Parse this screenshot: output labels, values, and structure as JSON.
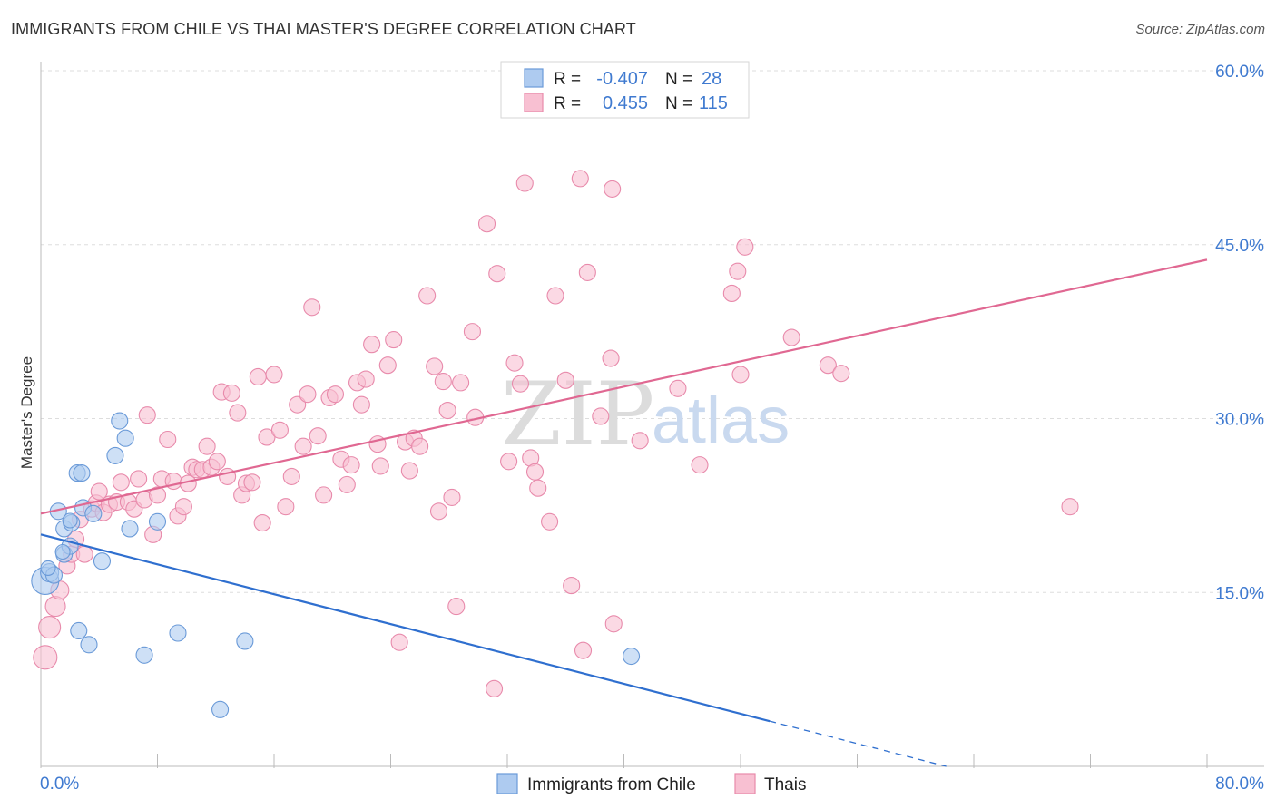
{
  "header": {
    "title": "IMMIGRANTS FROM CHILE VS THAI MASTER'S DEGREE CORRELATION CHART",
    "source": "Source: ZipAtlas.com"
  },
  "legend": {
    "r_label": "R =",
    "n_label": "N =",
    "rows": [
      {
        "r": "-0.407",
        "n": "28"
      },
      {
        "r": "0.455",
        "n": "115"
      }
    ]
  },
  "watermark": {
    "part1": "ZIP",
    "part2": "atlas"
  },
  "colors": {
    "chile_fill": "#aecbf0",
    "chile_stroke": "#6a9ad8",
    "chile_line": "#2f6fcf",
    "thai_fill": "#f8c0d2",
    "thai_stroke": "#e88aab",
    "thai_line": "#e06892",
    "tick_text": "#3f7ad0",
    "grid": "#dddddd"
  },
  "chart_data": {
    "type": "scatter",
    "title": "IMMIGRANTS FROM CHILE VS THAI MASTER'S DEGREE CORRELATION CHART",
    "xlabel": "",
    "ylabel": "Master's Degree",
    "xlim": [
      0,
      80
    ],
    "ylim": [
      0,
      60
    ],
    "x_tick_labels": [
      {
        "value": 0,
        "label": "0.0%"
      },
      {
        "value": 80,
        "label": "80.0%"
      }
    ],
    "y_tick_labels": [
      {
        "value": 15,
        "label": "15.0%"
      },
      {
        "value": 30,
        "label": "30.0%"
      },
      {
        "value": 45,
        "label": "45.0%"
      },
      {
        "value": 60,
        "label": "60.0%"
      }
    ],
    "grid": true,
    "series": [
      {
        "name": "Immigrants from Chile",
        "r": -0.407,
        "n": 28,
        "trend": {
          "x0": 0,
          "y0": 20.0,
          "x1": 50,
          "y1": 3.9,
          "dash_to_x": 80,
          "dash_to_y": -5.7
        },
        "points": [
          {
            "x": 0.3,
            "y": 16.0,
            "s": 15
          },
          {
            "x": 0.6,
            "y": 16.7,
            "s": 10
          },
          {
            "x": 1.2,
            "y": 22.0,
            "s": 9
          },
          {
            "x": 1.6,
            "y": 18.3,
            "s": 9
          },
          {
            "x": 1.6,
            "y": 20.5,
            "s": 9
          },
          {
            "x": 2.0,
            "y": 19.0,
            "s": 9
          },
          {
            "x": 2.1,
            "y": 21.0,
            "s": 9
          },
          {
            "x": 2.5,
            "y": 25.3,
            "s": 9
          },
          {
            "x": 2.8,
            "y": 25.3,
            "s": 9
          },
          {
            "x": 2.9,
            "y": 22.3,
            "s": 9
          },
          {
            "x": 3.6,
            "y": 21.8,
            "s": 9
          },
          {
            "x": 4.2,
            "y": 17.7,
            "s": 9
          },
          {
            "x": 5.1,
            "y": 26.8,
            "s": 9
          },
          {
            "x": 5.4,
            "y": 29.8,
            "s": 9
          },
          {
            "x": 5.8,
            "y": 28.3,
            "s": 9
          },
          {
            "x": 6.1,
            "y": 20.5,
            "s": 9
          },
          {
            "x": 8.0,
            "y": 21.1,
            "s": 9
          },
          {
            "x": 2.6,
            "y": 11.7,
            "s": 9
          },
          {
            "x": 3.3,
            "y": 10.5,
            "s": 9
          },
          {
            "x": 7.1,
            "y": 9.6,
            "s": 9
          },
          {
            "x": 9.4,
            "y": 11.5,
            "s": 9
          },
          {
            "x": 14.0,
            "y": 10.8,
            "s": 9
          },
          {
            "x": 12.3,
            "y": 4.9,
            "s": 9
          },
          {
            "x": 40.5,
            "y": 9.5,
            "s": 9
          },
          {
            "x": 0.9,
            "y": 16.5,
            "s": 9
          },
          {
            "x": 1.5,
            "y": 18.5,
            "s": 8
          },
          {
            "x": 0.5,
            "y": 17.1,
            "s": 8
          },
          {
            "x": 2.0,
            "y": 21.2,
            "s": 8
          }
        ]
      },
      {
        "name": "Thais",
        "r": 0.455,
        "n": 115,
        "trend": {
          "x0": 0,
          "y0": 21.8,
          "x1": 80,
          "y1": 43.7
        },
        "points": [
          {
            "x": 0.3,
            "y": 9.4,
            "s": 13
          },
          {
            "x": 0.6,
            "y": 12.0,
            "s": 12
          },
          {
            "x": 1.0,
            "y": 13.8,
            "s": 11
          },
          {
            "x": 1.3,
            "y": 15.2,
            "s": 10
          },
          {
            "x": 1.8,
            "y": 17.3,
            "s": 9
          },
          {
            "x": 2.1,
            "y": 18.3,
            "s": 9
          },
          {
            "x": 2.4,
            "y": 19.6,
            "s": 9
          },
          {
            "x": 2.7,
            "y": 21.3,
            "s": 9
          },
          {
            "x": 3.0,
            "y": 18.3,
            "s": 9
          },
          {
            "x": 3.5,
            "y": 22.2,
            "s": 9
          },
          {
            "x": 3.8,
            "y": 22.7,
            "s": 9
          },
          {
            "x": 4.0,
            "y": 23.7,
            "s": 9
          },
          {
            "x": 4.3,
            "y": 21.9,
            "s": 9
          },
          {
            "x": 4.7,
            "y": 22.6,
            "s": 9
          },
          {
            "x": 5.2,
            "y": 22.8,
            "s": 9
          },
          {
            "x": 5.5,
            "y": 24.5,
            "s": 9
          },
          {
            "x": 6.0,
            "y": 22.8,
            "s": 9
          },
          {
            "x": 6.4,
            "y": 22.2,
            "s": 9
          },
          {
            "x": 6.7,
            "y": 24.8,
            "s": 9
          },
          {
            "x": 7.1,
            "y": 23.0,
            "s": 9
          },
          {
            "x": 7.3,
            "y": 30.3,
            "s": 9
          },
          {
            "x": 7.7,
            "y": 20.0,
            "s": 9
          },
          {
            "x": 8.0,
            "y": 23.4,
            "s": 9
          },
          {
            "x": 8.3,
            "y": 24.8,
            "s": 9
          },
          {
            "x": 8.7,
            "y": 28.2,
            "s": 9
          },
          {
            "x": 9.1,
            "y": 24.6,
            "s": 9
          },
          {
            "x": 9.4,
            "y": 21.6,
            "s": 9
          },
          {
            "x": 9.8,
            "y": 22.4,
            "s": 9
          },
          {
            "x": 10.1,
            "y": 24.4,
            "s": 9
          },
          {
            "x": 10.4,
            "y": 25.8,
            "s": 9
          },
          {
            "x": 10.7,
            "y": 25.6,
            "s": 9
          },
          {
            "x": 11.1,
            "y": 25.6,
            "s": 9
          },
          {
            "x": 11.4,
            "y": 27.6,
            "s": 9
          },
          {
            "x": 11.7,
            "y": 25.8,
            "s": 9
          },
          {
            "x": 12.1,
            "y": 26.3,
            "s": 9
          },
          {
            "x": 12.4,
            "y": 32.3,
            "s": 9
          },
          {
            "x": 12.8,
            "y": 25.0,
            "s": 9
          },
          {
            "x": 13.1,
            "y": 32.2,
            "s": 9
          },
          {
            "x": 13.5,
            "y": 30.5,
            "s": 9
          },
          {
            "x": 13.8,
            "y": 23.4,
            "s": 9
          },
          {
            "x": 14.1,
            "y": 24.4,
            "s": 9
          },
          {
            "x": 14.5,
            "y": 24.5,
            "s": 9
          },
          {
            "x": 14.9,
            "y": 33.6,
            "s": 9
          },
          {
            "x": 15.2,
            "y": 21.0,
            "s": 9
          },
          {
            "x": 15.5,
            "y": 28.4,
            "s": 9
          },
          {
            "x": 16.0,
            "y": 33.8,
            "s": 9
          },
          {
            "x": 16.4,
            "y": 29.0,
            "s": 9
          },
          {
            "x": 16.8,
            "y": 22.4,
            "s": 9
          },
          {
            "x": 17.2,
            "y": 25.0,
            "s": 9
          },
          {
            "x": 17.6,
            "y": 31.2,
            "s": 9
          },
          {
            "x": 18.0,
            "y": 27.6,
            "s": 9
          },
          {
            "x": 18.3,
            "y": 32.1,
            "s": 9
          },
          {
            "x": 18.6,
            "y": 39.6,
            "s": 9
          },
          {
            "x": 19.0,
            "y": 28.5,
            "s": 9
          },
          {
            "x": 19.4,
            "y": 23.4,
            "s": 9
          },
          {
            "x": 19.8,
            "y": 31.8,
            "s": 9
          },
          {
            "x": 20.2,
            "y": 32.1,
            "s": 9
          },
          {
            "x": 20.6,
            "y": 26.5,
            "s": 9
          },
          {
            "x": 21.0,
            "y": 24.3,
            "s": 9
          },
          {
            "x": 21.3,
            "y": 26.0,
            "s": 9
          },
          {
            "x": 21.7,
            "y": 33.1,
            "s": 9
          },
          {
            "x": 22.0,
            "y": 31.2,
            "s": 9
          },
          {
            "x": 22.3,
            "y": 33.4,
            "s": 9
          },
          {
            "x": 22.7,
            "y": 36.4,
            "s": 9
          },
          {
            "x": 23.1,
            "y": 27.8,
            "s": 9
          },
          {
            "x": 23.3,
            "y": 25.9,
            "s": 9
          },
          {
            "x": 23.8,
            "y": 34.6,
            "s": 9
          },
          {
            "x": 24.2,
            "y": 36.8,
            "s": 9
          },
          {
            "x": 24.6,
            "y": 10.7,
            "s": 9
          },
          {
            "x": 25.0,
            "y": 28.0,
            "s": 9
          },
          {
            "x": 25.3,
            "y": 25.5,
            "s": 9
          },
          {
            "x": 25.6,
            "y": 28.3,
            "s": 9
          },
          {
            "x": 26.0,
            "y": 27.6,
            "s": 9
          },
          {
            "x": 26.5,
            "y": 40.6,
            "s": 9
          },
          {
            "x": 27.0,
            "y": 34.5,
            "s": 9
          },
          {
            "x": 27.3,
            "y": 22.0,
            "s": 9
          },
          {
            "x": 27.6,
            "y": 33.2,
            "s": 9
          },
          {
            "x": 27.9,
            "y": 30.7,
            "s": 9
          },
          {
            "x": 28.2,
            "y": 23.2,
            "s": 9
          },
          {
            "x": 28.5,
            "y": 13.8,
            "s": 9
          },
          {
            "x": 28.8,
            "y": 33.1,
            "s": 9
          },
          {
            "x": 29.6,
            "y": 37.5,
            "s": 9
          },
          {
            "x": 29.8,
            "y": 30.1,
            "s": 9
          },
          {
            "x": 30.6,
            "y": 46.8,
            "s": 9
          },
          {
            "x": 31.1,
            "y": 6.7,
            "s": 9
          },
          {
            "x": 31.3,
            "y": 42.5,
            "s": 9
          },
          {
            "x": 32.1,
            "y": 26.3,
            "s": 9
          },
          {
            "x": 32.5,
            "y": 34.8,
            "s": 9
          },
          {
            "x": 32.9,
            "y": 33.0,
            "s": 9
          },
          {
            "x": 33.2,
            "y": 50.3,
            "s": 9
          },
          {
            "x": 33.6,
            "y": 26.6,
            "s": 9
          },
          {
            "x": 33.9,
            "y": 25.4,
            "s": 9
          },
          {
            "x": 34.1,
            "y": 24.0,
            "s": 9
          },
          {
            "x": 34.9,
            "y": 21.1,
            "s": 9
          },
          {
            "x": 35.3,
            "y": 40.6,
            "s": 9
          },
          {
            "x": 36.0,
            "y": 33.3,
            "s": 9
          },
          {
            "x": 36.4,
            "y": 15.6,
            "s": 9
          },
          {
            "x": 37.0,
            "y": 50.7,
            "s": 9
          },
          {
            "x": 37.2,
            "y": 10.0,
            "s": 9
          },
          {
            "x": 37.5,
            "y": 42.6,
            "s": 9
          },
          {
            "x": 38.4,
            "y": 30.2,
            "s": 9
          },
          {
            "x": 39.3,
            "y": 12.3,
            "s": 9
          },
          {
            "x": 39.1,
            "y": 35.2,
            "s": 9
          },
          {
            "x": 39.2,
            "y": 49.8,
            "s": 9
          },
          {
            "x": 41.1,
            "y": 28.1,
            "s": 9
          },
          {
            "x": 43.7,
            "y": 32.6,
            "s": 9
          },
          {
            "x": 45.2,
            "y": 26.0,
            "s": 9
          },
          {
            "x": 47.4,
            "y": 40.8,
            "s": 9
          },
          {
            "x": 47.8,
            "y": 42.7,
            "s": 9
          },
          {
            "x": 48.0,
            "y": 33.8,
            "s": 9
          },
          {
            "x": 48.3,
            "y": 44.8,
            "s": 9
          },
          {
            "x": 51.5,
            "y": 37.0,
            "s": 9
          },
          {
            "x": 54.0,
            "y": 34.6,
            "s": 9
          },
          {
            "x": 54.9,
            "y": 33.9,
            "s": 9
          },
          {
            "x": 70.6,
            "y": 22.4,
            "s": 9
          }
        ]
      }
    ]
  },
  "bottom_legend": {
    "items": [
      {
        "label": "Immigrants from Chile"
      },
      {
        "label": "Thais"
      }
    ]
  }
}
